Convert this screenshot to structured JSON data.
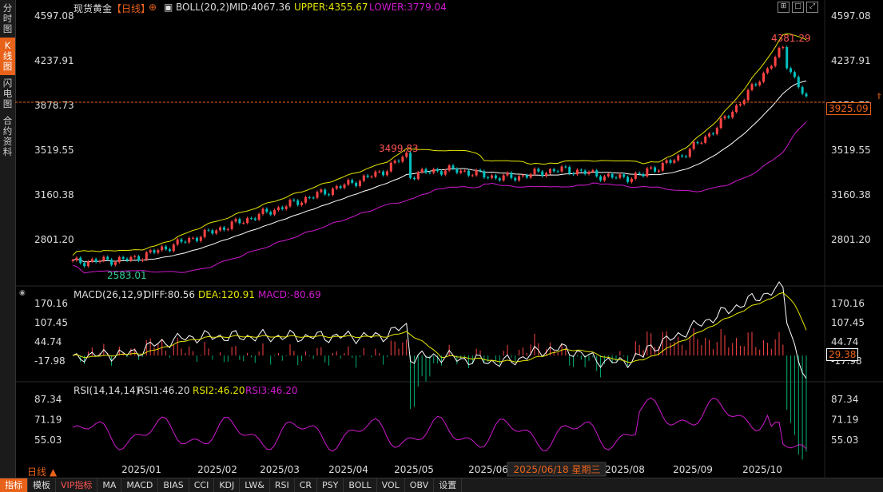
{
  "sidebar": {
    "tabs": [
      "分时图",
      "K线图",
      "闪电图",
      "合约资料"
    ],
    "active": 1
  },
  "header": {
    "symbol": "现货黄金",
    "period": "【日线】",
    "indicator": "BOLL(20,2)",
    "mid": "MID:4067.36",
    "upper": "UPPER:4355.67",
    "lower": "LOWER:3779.04"
  },
  "macd_header": {
    "name": "MACD(26,12,9)",
    "diff": "DIFF:80.56",
    "dea": "DEA:120.91",
    "macd": "MACD:-80.69"
  },
  "rsi_header": {
    "name": "RSI(14,14,14)",
    "rsi1": "RSI1:46.20",
    "rsi2": "RSI2:46.20",
    "rsi3": "RSI3:46.20"
  },
  "colors": {
    "up": "#ff4444",
    "down": "#00c0c0",
    "upper": "#e6e600",
    "mid": "#ffffff",
    "lower": "#d01ad0",
    "accent": "#e8621a"
  },
  "chart_data": [
    {
      "type": "candlestick",
      "title": "现货黄金 日线",
      "y_ticks": [
        "4597.08",
        "4237.91",
        "3878.73",
        "3519.55",
        "3160.38",
        "2801.20"
      ],
      "y_tick_values": [
        4597.08,
        4237.91,
        3878.73,
        3519.55,
        3160.38,
        2801.2
      ],
      "ylim": [
        2650,
        4597.08
      ],
      "annotations": {
        "high": "4381.29",
        "mid_high": "3499.83",
        "low": "2583.01"
      },
      "last_price": "3925.09",
      "bands": [
        "BOLL UPPER",
        "BOLL MID",
        "BOLL LOWER"
      ]
    },
    {
      "type": "line",
      "name": "MACD",
      "y_ticks": [
        "170.16",
        "107.45",
        "44.74",
        "-17.98"
      ],
      "y_tick_values": [
        170.16,
        107.45,
        44.74,
        -17.98
      ],
      "current": "29.38"
    },
    {
      "type": "line",
      "name": "RSI",
      "y_ticks": [
        "87.34",
        "71.19",
        "55.03"
      ],
      "y_tick_values": [
        87.34,
        71.19,
        55.03
      ]
    }
  ],
  "x_axis": {
    "period_label": "日线",
    "months": [
      "2025/01",
      "2025/02",
      "2025/03",
      "2025/04",
      "2025/05",
      "2025/06",
      "2025/08",
      "2025/09",
      "2025/10"
    ],
    "cursor_label": "2025/06/18 星期三"
  },
  "toolbar": [
    "指标",
    "模板",
    "VIP指标",
    "MA",
    "MACD",
    "BIAS",
    "CCI",
    "KDJ",
    "LW&",
    "RSI",
    "CR",
    "PSY",
    "BOLL",
    "VOL",
    "OBV",
    "设置"
  ]
}
